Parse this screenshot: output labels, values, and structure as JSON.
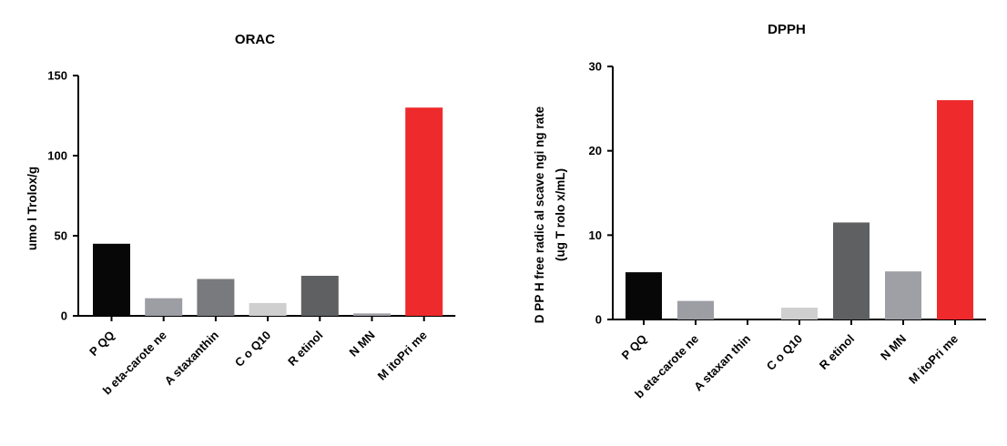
{
  "chart_data": [
    {
      "type": "bar",
      "title": "ORAC",
      "ylabel": "umo l Trolox/g",
      "ylabel2": "",
      "ylim": [
        0,
        150
      ],
      "yticks": [
        "0",
        "50",
        "100",
        "150"
      ],
      "categories": [
        "P QQ",
        "b eta-carote ne",
        "A staxanthin",
        "C o Q10",
        "R etinol",
        "N MN",
        "M itoPri me"
      ],
      "values": [
        45,
        11,
        23,
        8,
        25,
        1.5,
        130
      ],
      "colors": [
        "#070707",
        "#9d9ea4",
        "#787a7d",
        "#cfcfcf",
        "#5f6062",
        "#9fa0a6",
        "#ee2a2c"
      ],
      "grid": false,
      "legend": "none"
    },
    {
      "type": "bar",
      "title": "DPPH",
      "ylabel": "D PP H free radic al scave ngi ng rate",
      "ylabel2": "(ug T rolo x/mL)",
      "ylim": [
        0,
        30
      ],
      "yticks": [
        "0",
        "10",
        "20",
        "30"
      ],
      "categories": [
        "P QQ",
        "b eta-carote ne",
        "A staxan thin",
        "C o Q10",
        "R etinol",
        "N MN",
        "M itoPri me"
      ],
      "values": [
        5.6,
        2.2,
        0,
        1.4,
        11.5,
        5.7,
        26
      ],
      "colors": [
        "#070707",
        "#9d9ea4",
        "#787a7d",
        "#cfcfcf",
        "#5f6062",
        "#9fa0a6",
        "#ee2a2c"
      ],
      "grid": false,
      "legend": "none"
    }
  ]
}
